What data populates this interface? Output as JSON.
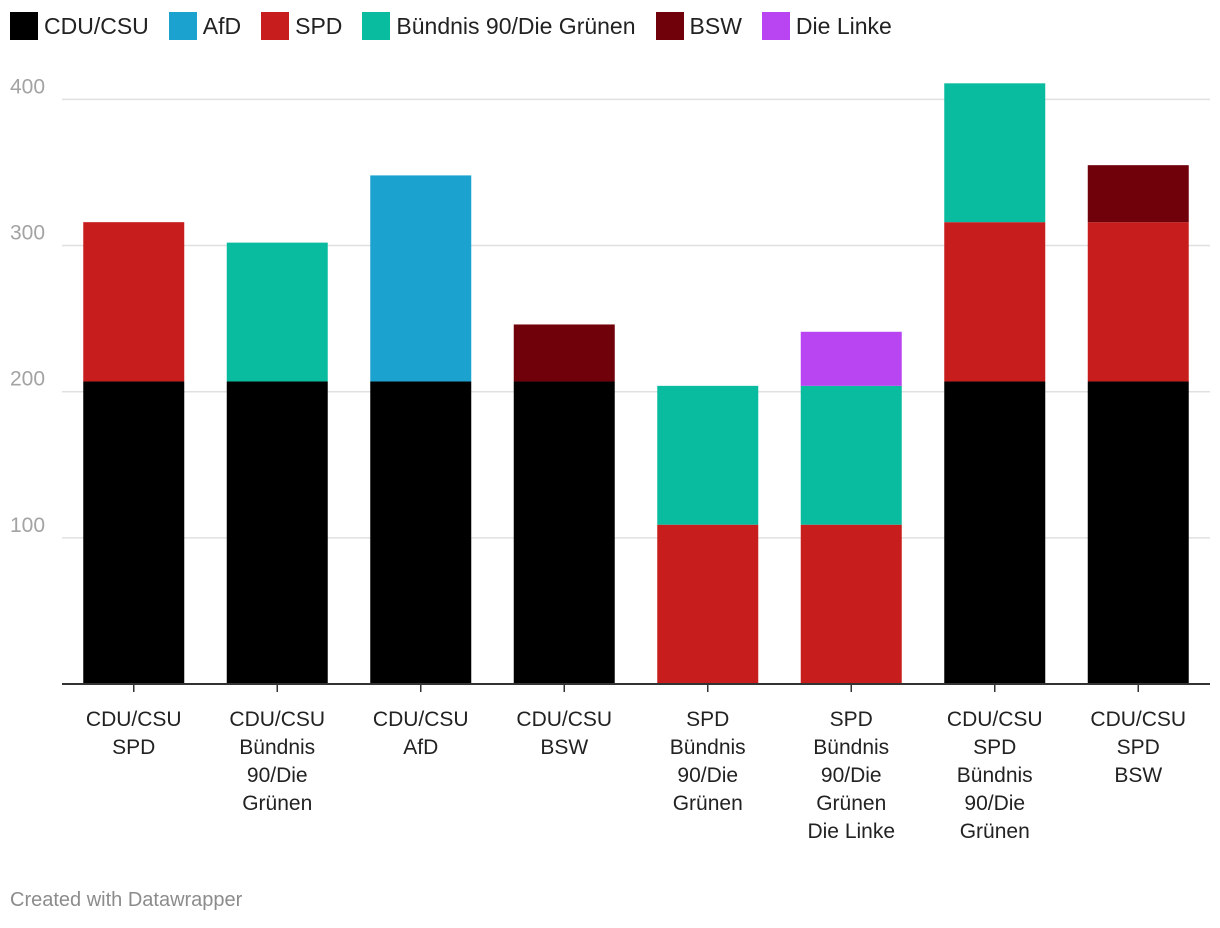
{
  "chart_data": {
    "type": "bar",
    "stacked": true,
    "categories": [
      [
        "CDU/CSU",
        "SPD"
      ],
      [
        "CDU/CSU",
        "Bündnis",
        "90/Die",
        "Grünen"
      ],
      [
        "CDU/CSU",
        "AfD"
      ],
      [
        "CDU/CSU",
        "BSW"
      ],
      [
        "SPD",
        "Bündnis",
        "90/Die",
        "Grünen"
      ],
      [
        "SPD",
        "Bündnis",
        "90/Die",
        "Grünen",
        "Die Linke"
      ],
      [
        "CDU/CSU",
        "SPD",
        "Bündnis",
        "90/Die",
        "Grünen"
      ],
      [
        "CDU/CSU",
        "SPD",
        "BSW"
      ]
    ],
    "series": [
      {
        "name": "CDU/CSU",
        "color": "#000000",
        "values": [
          207,
          207,
          207,
          207,
          0,
          0,
          207,
          207
        ]
      },
      {
        "name": "AfD",
        "color": "#1ba2cf",
        "values": [
          0,
          0,
          141,
          0,
          0,
          0,
          0,
          0
        ]
      },
      {
        "name": "SPD",
        "color": "#c71e1d",
        "values": [
          109,
          0,
          0,
          0,
          109,
          109,
          109,
          109
        ]
      },
      {
        "name": "Bündnis 90/Die Grünen",
        "color": "#09bb9f",
        "values": [
          0,
          95,
          0,
          0,
          95,
          95,
          95,
          0
        ]
      },
      {
        "name": "BSW",
        "color": "#700009",
        "values": [
          0,
          0,
          0,
          39,
          0,
          0,
          0,
          39
        ]
      },
      {
        "name": "Die Linke",
        "color": "#b845f1",
        "values": [
          0,
          0,
          0,
          0,
          0,
          37,
          0,
          0
        ]
      }
    ],
    "yticks": [
      100,
      200,
      300,
      400
    ],
    "ylim": [
      0,
      420
    ],
    "title": "",
    "xlabel": "",
    "ylabel": "",
    "grid": true,
    "legend": "top-left"
  },
  "footer": "Created with Datawrapper"
}
